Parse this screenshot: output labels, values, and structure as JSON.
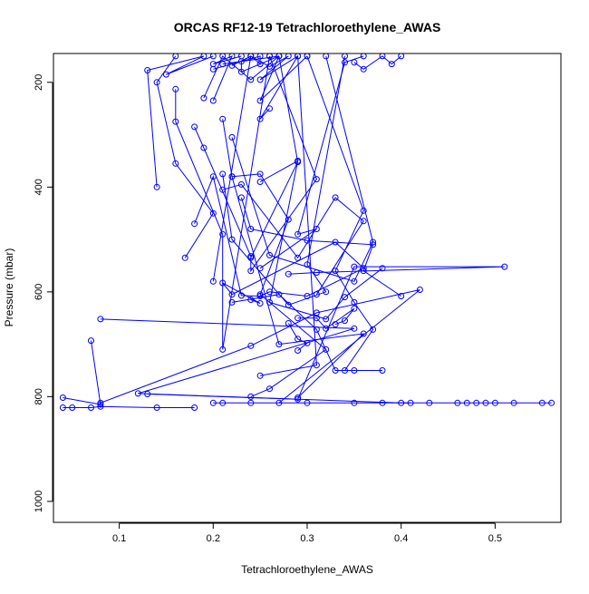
{
  "chart_data": {
    "type": "scatter",
    "title": "ORCAS RF12-19 Tetrachloroethylene_AWAS",
    "xlabel": "Tetrachloroethylene_AWAS",
    "ylabel": "Pressure (mbar)",
    "xlim": [
      0.03,
      0.57
    ],
    "ylim": [
      1040,
      145
    ],
    "y_reversed": true,
    "grid": false,
    "legend": "none",
    "x_ticks": [
      {
        "value": 0.1,
        "label": "0.1"
      },
      {
        "value": 0.2,
        "label": "0.2"
      },
      {
        "value": 0.3,
        "label": "0.3"
      },
      {
        "value": 0.4,
        "label": "0.4"
      },
      {
        "value": 0.5,
        "label": "0.5"
      }
    ],
    "y_ticks": [
      {
        "value": 200,
        "label": "200"
      },
      {
        "value": 400,
        "label": "400"
      },
      {
        "value": 600,
        "label": "600"
      },
      {
        "value": 800,
        "label": "800"
      },
      {
        "value": 1000,
        "label": "1000"
      }
    ],
    "series_color": "#0000ff",
    "series": [
      {
        "points": [
          [
            0.04,
            821
          ],
          [
            0.05,
            821
          ],
          [
            0.07,
            821
          ],
          [
            0.08,
            819
          ],
          [
            0.14,
            821
          ],
          [
            0.18,
            821
          ]
        ]
      },
      {
        "points": [
          [
            0.07,
            693
          ],
          [
            0.08,
            815
          ],
          [
            0.04,
            802
          ]
        ]
      },
      {
        "points": [
          [
            0.08,
            652
          ],
          [
            0.35,
            670
          ],
          [
            0.12,
            794
          ],
          [
            0.4,
            812
          ],
          [
            0.43,
            812
          ],
          [
            0.46,
            812
          ],
          [
            0.47,
            812
          ],
          [
            0.48,
            812
          ],
          [
            0.49,
            812
          ],
          [
            0.5,
            812
          ],
          [
            0.52,
            812
          ],
          [
            0.55,
            812
          ],
          [
            0.56,
            812
          ]
        ]
      },
      {
        "points": [
          [
            0.08,
            812
          ],
          [
            0.24,
            703
          ],
          [
            0.31,
            640
          ],
          [
            0.42,
            596
          ],
          [
            0.27,
            812
          ],
          [
            0.2,
            812
          ],
          [
            0.21,
            812
          ],
          [
            0.24,
            812
          ],
          [
            0.3,
            812
          ],
          [
            0.35,
            812
          ],
          [
            0.38,
            812
          ],
          [
            0.41,
            812
          ]
        ]
      },
      {
        "points": [
          [
            0.13,
            795
          ],
          [
            0.29,
            805
          ],
          [
            0.35,
            552
          ],
          [
            0.51,
            552
          ],
          [
            0.31,
            563
          ],
          [
            0.28,
            566
          ]
        ]
      },
      {
        "points": [
          [
            0.17,
            535
          ],
          [
            0.2,
            450
          ],
          [
            0.16,
            355
          ],
          [
            0.14,
            200
          ],
          [
            0.16,
            150
          ]
        ]
      },
      {
        "points": [
          [
            0.14,
            400
          ],
          [
            0.13,
            177
          ],
          [
            0.19,
            150
          ],
          [
            0.15,
            185
          ],
          [
            0.2,
            150
          ]
        ]
      },
      {
        "points": [
          [
            0.16,
            213
          ],
          [
            0.16,
            275
          ],
          [
            0.21,
            490
          ],
          [
            0.21,
            710
          ],
          [
            0.26,
            150
          ]
        ]
      },
      {
        "points": [
          [
            0.18,
            470
          ],
          [
            0.2,
            380
          ],
          [
            0.23,
            607
          ],
          [
            0.25,
            608
          ],
          [
            0.26,
            600
          ],
          [
            0.3,
            608
          ],
          [
            0.36,
            555
          ],
          [
            0.33,
            505
          ],
          [
            0.22,
            605
          ],
          [
            0.21,
            583
          ],
          [
            0.25,
            622
          ],
          [
            0.24,
            615
          ]
        ]
      },
      {
        "points": [
          [
            0.18,
            285
          ],
          [
            0.19,
            325
          ],
          [
            0.24,
            532
          ],
          [
            0.24,
            560
          ],
          [
            0.31,
            385
          ],
          [
            0.26,
            150
          ]
        ]
      },
      {
        "points": [
          [
            0.19,
            230
          ],
          [
            0.21,
            150
          ],
          [
            0.24,
            195
          ],
          [
            0.27,
            150
          ],
          [
            0.25,
            235
          ],
          [
            0.3,
            150
          ]
        ]
      },
      {
        "points": [
          [
            0.2,
            235
          ],
          [
            0.22,
            150
          ],
          [
            0.2,
            165
          ],
          [
            0.23,
            150
          ]
        ]
      },
      {
        "points": [
          [
            0.21,
            165
          ],
          [
            0.27,
            150
          ],
          [
            0.23,
            180
          ],
          [
            0.23,
            160
          ],
          [
            0.24,
            150
          ]
        ]
      },
      {
        "points": [
          [
            0.22,
            168
          ],
          [
            0.24,
            150
          ],
          [
            0.26,
            170
          ],
          [
            0.28,
            150
          ],
          [
            0.25,
            195
          ],
          [
            0.29,
            150
          ]
        ]
      },
      {
        "points": [
          [
            0.2,
            175
          ],
          [
            0.25,
            150
          ],
          [
            0.25,
            165
          ],
          [
            0.24,
            150
          ],
          [
            0.2,
            580
          ]
        ]
      },
      {
        "points": [
          [
            0.21,
            375
          ],
          [
            0.22,
            500
          ],
          [
            0.28,
            625
          ],
          [
            0.32,
            600
          ],
          [
            0.3,
            548
          ],
          [
            0.34,
            150
          ]
        ]
      },
      {
        "points": [
          [
            0.21,
            405
          ],
          [
            0.23,
            395
          ],
          [
            0.29,
            535
          ],
          [
            0.33,
            420
          ],
          [
            0.36,
            465
          ],
          [
            0.31,
            605
          ]
        ]
      },
      {
        "points": [
          [
            0.22,
            305
          ],
          [
            0.26,
            530
          ],
          [
            0.35,
            580
          ],
          [
            0.37,
            505
          ],
          [
            0.32,
            150
          ]
        ]
      },
      {
        "points": [
          [
            0.22,
            620
          ],
          [
            0.27,
            605
          ],
          [
            0.31,
            672
          ],
          [
            0.33,
            750
          ],
          [
            0.35,
            750
          ],
          [
            0.38,
            750
          ]
        ]
      },
      {
        "points": [
          [
            0.22,
            380
          ],
          [
            0.25,
            375
          ],
          [
            0.28,
            462
          ],
          [
            0.25,
            605
          ],
          [
            0.32,
            710
          ],
          [
            0.26,
            785
          ],
          [
            0.24,
            800
          ]
        ]
      },
      {
        "points": [
          [
            0.23,
            420
          ],
          [
            0.24,
            480
          ],
          [
            0.3,
            502
          ],
          [
            0.37,
            510
          ],
          [
            0.36,
            560
          ],
          [
            0.4,
            608
          ]
        ]
      },
      {
        "points": [
          [
            0.25,
            390
          ],
          [
            0.29,
            350
          ],
          [
            0.26,
            620
          ],
          [
            0.32,
            652
          ],
          [
            0.34,
            610
          ],
          [
            0.38,
            555
          ]
        ]
      },
      {
        "points": [
          [
            0.25,
            555
          ],
          [
            0.31,
            480
          ],
          [
            0.29,
            490
          ],
          [
            0.34,
            162
          ],
          [
            0.36,
            150
          ]
        ]
      },
      {
        "points": [
          [
            0.25,
            760
          ],
          [
            0.31,
            740
          ],
          [
            0.29,
            150
          ],
          [
            0.25,
            270
          ],
          [
            0.26,
            250
          ]
        ]
      },
      {
        "points": [
          [
            0.29,
            650
          ],
          [
            0.31,
            650
          ],
          [
            0.32,
            670
          ],
          [
            0.35,
            632
          ],
          [
            0.34,
            655
          ],
          [
            0.33,
            662
          ]
        ]
      },
      {
        "points": [
          [
            0.28,
            660
          ],
          [
            0.29,
            690
          ],
          [
            0.3,
            698
          ],
          [
            0.29,
            712
          ]
        ]
      },
      {
        "points": [
          [
            0.35,
            162
          ],
          [
            0.36,
            175
          ],
          [
            0.38,
            150
          ],
          [
            0.39,
            165
          ],
          [
            0.4,
            150
          ]
        ]
      },
      {
        "points": [
          [
            0.34,
            750
          ],
          [
            0.37,
            672
          ],
          [
            0.35,
            620
          ],
          [
            0.33,
            560
          ],
          [
            0.36,
            445
          ],
          [
            0.3,
            150
          ]
        ]
      },
      {
        "points": [
          [
            0.29,
            802
          ],
          [
            0.36,
            680
          ],
          [
            0.27,
            700
          ],
          [
            0.22,
            380
          ],
          [
            0.21,
            270
          ]
        ]
      },
      {
        "points": [
          [
            0.24,
            535
          ],
          [
            0.29,
            352
          ],
          [
            0.27,
            150
          ]
        ]
      }
    ]
  }
}
